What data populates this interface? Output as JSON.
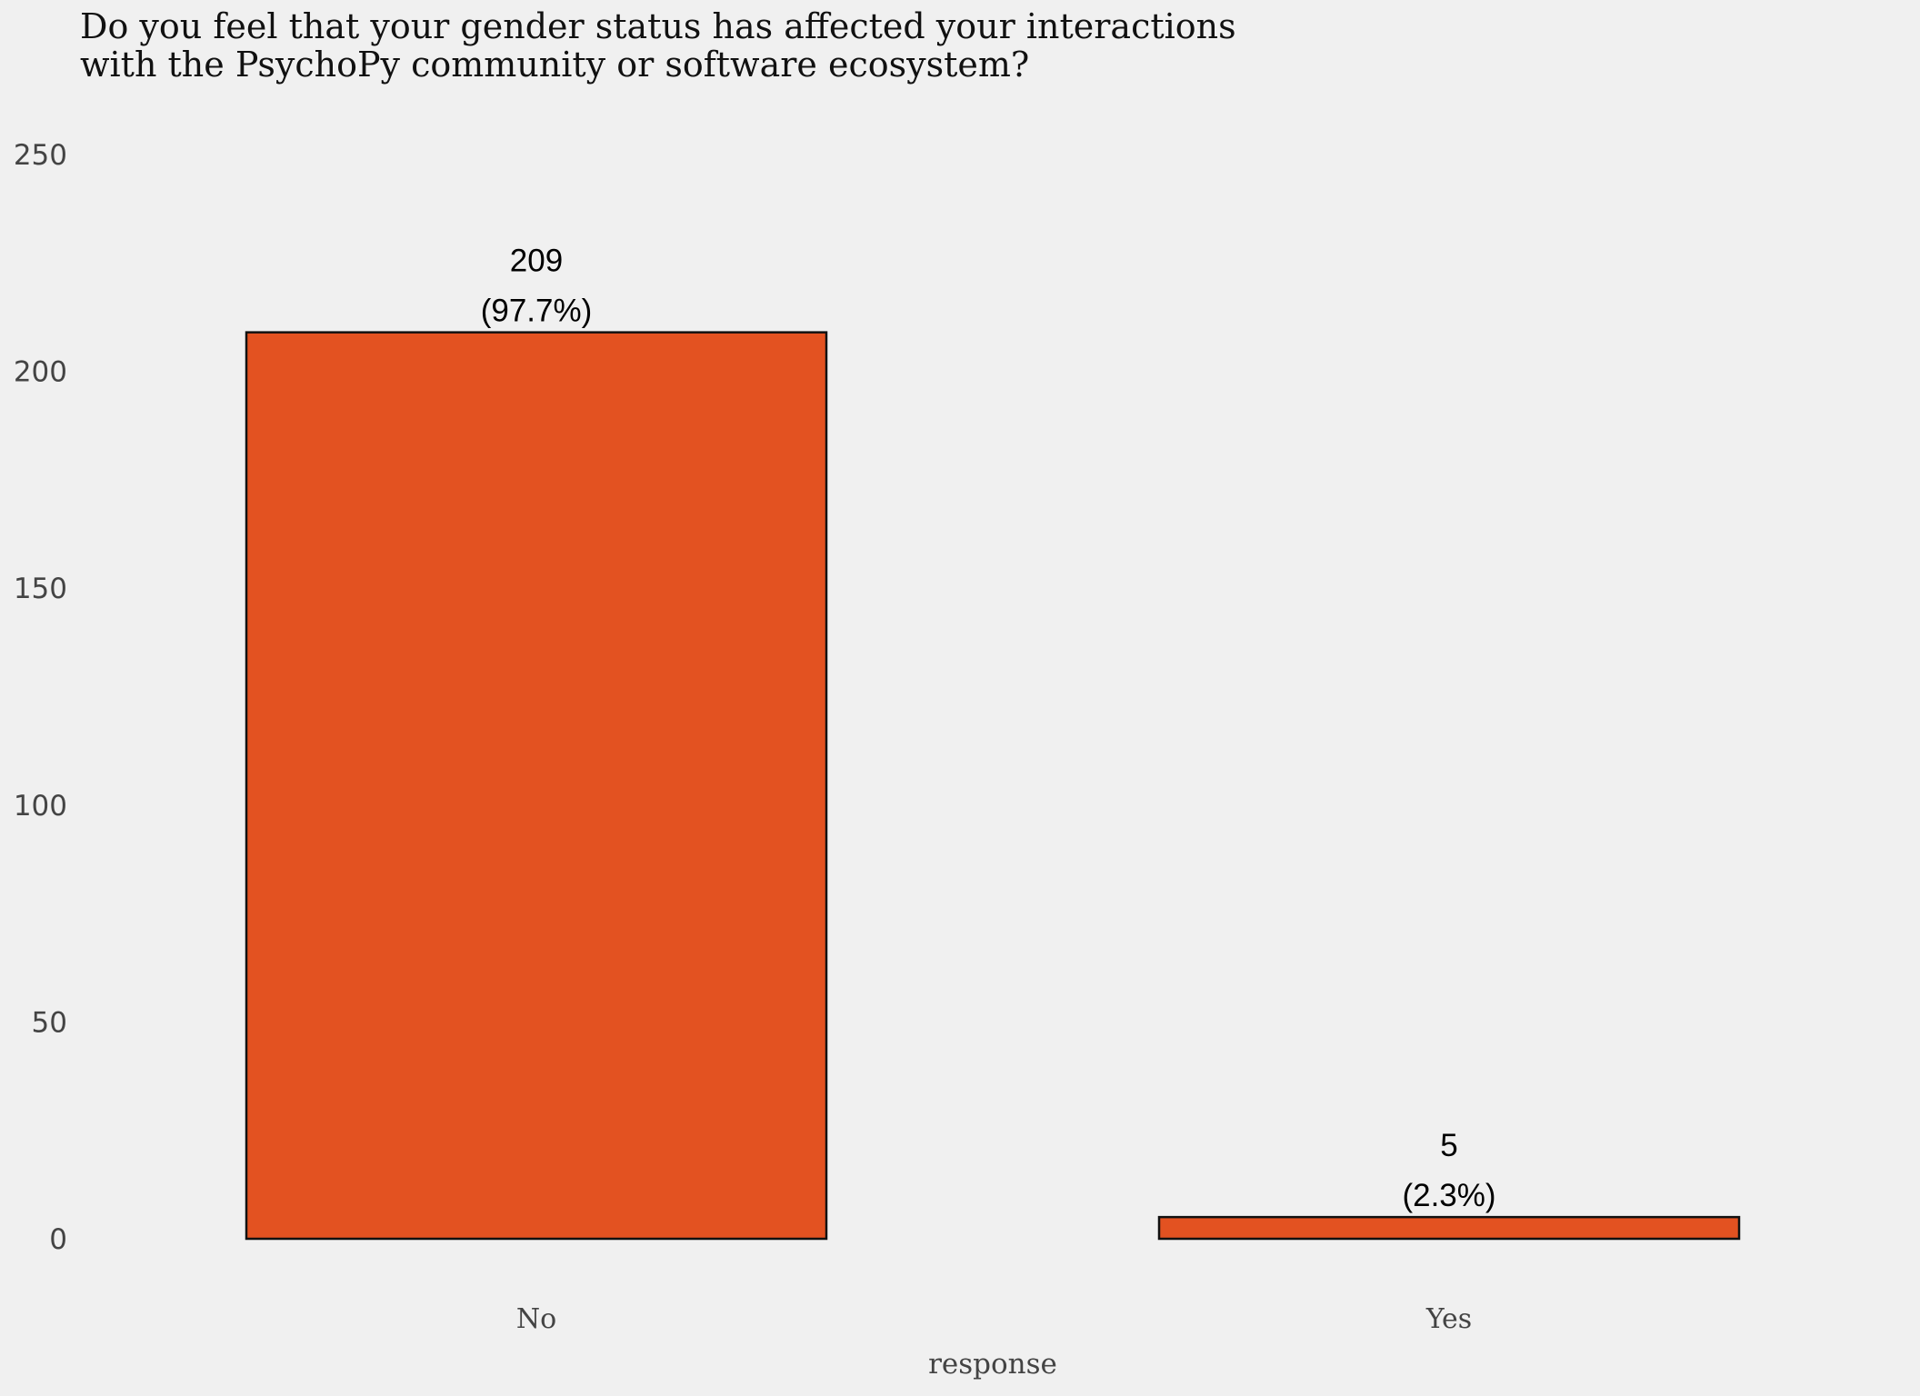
{
  "chart_data": {
    "type": "bar",
    "title_lines": [
      "Do you feel that your gender status has affected your interactions",
      "with the PsychoPy community or software ecosystem?"
    ],
    "title": "Do you feel that your gender status has affected your interactions with the PsychoPy community or software ecosystem?",
    "xlabel": "response",
    "ylabel": "",
    "categories": [
      "No",
      "Yes"
    ],
    "values": [
      209,
      5
    ],
    "data_labels": [
      {
        "count": "209",
        "percent": "(97.7%)"
      },
      {
        "count": "5",
        "percent": "(2.3%)"
      }
    ],
    "yticks": [
      0,
      50,
      100,
      150,
      200,
      250
    ],
    "ylim": [
      0,
      250
    ],
    "grid": false,
    "legend": "none",
    "colors": {
      "bar_fill": "#e35221",
      "bar_stroke": "#111111",
      "background": "#f0f0f0"
    }
  }
}
